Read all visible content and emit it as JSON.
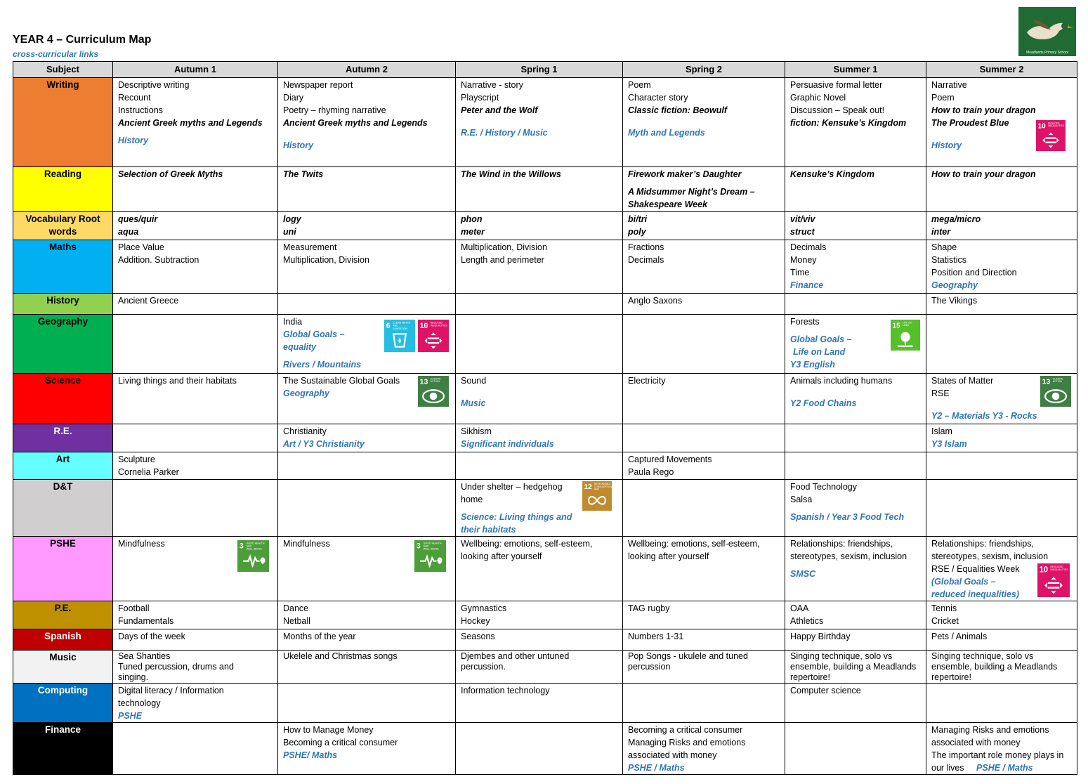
{
  "header": {
    "title": "YEAR 4 – Curriculum Map",
    "subtitle": "cross-curricular links",
    "logo_text": "Meadlands Primary School"
  },
  "columns": [
    "Subject",
    "Autumn 1",
    "Autumn 2",
    "Spring 1",
    "Spring 2",
    "Summer 1",
    "Summer 2"
  ],
  "colors": {
    "Writing": "#ed7d31",
    "Reading": "#ffff00",
    "Vocabulary": "#ffd966",
    "Maths": "#00b0f0",
    "History": "#92d050",
    "Geography": "#00b050",
    "Science": "#ff0000",
    "RE": "#7030a0",
    "Art": "#66ffff",
    "DT": "#d0cece",
    "PSHE": "#ff99ff",
    "PE": "#bf9000",
    "Spanish": "#c00000",
    "Music": "#f2f2f2",
    "Computing": "#0070c0",
    "Finance": "#000000",
    "link": "#2e75b6"
  },
  "sdg_icons": {
    "goal3": {
      "num": "3",
      "text": "GOOD HEALTH AND WELL-BEING",
      "color": "#4c9f38"
    },
    "goal6": {
      "num": "6",
      "text": "CLEAN WATER AND SANITATION",
      "color": "#26bde2"
    },
    "goal10": {
      "num": "10",
      "text": "REDUCED INEQUALITIES",
      "color": "#dd1367"
    },
    "goal12": {
      "num": "12",
      "text": "RESPONSIBLE CONSUMPTION AND PRODUCTION",
      "color": "#bf8b2e"
    },
    "goal13": {
      "num": "13",
      "text": "CLIMATE ACTION",
      "color": "#3f7e44"
    },
    "goal15": {
      "num": "15",
      "text": "LIFE ON LAND",
      "color": "#56c02b"
    }
  },
  "rows": {
    "writing": {
      "subject": "Writing",
      "a1": [
        "Descriptive writing",
        "Recount",
        "Instructions",
        "Ancient Greek myths and Legends",
        "History"
      ],
      "a2": [
        "Newspaper report",
        "Diary",
        "Poetry – rhyming narrative",
        "Ancient Greek myths and Legends",
        "History"
      ],
      "s1": [
        "Narrative - story",
        "Playscript",
        "Peter and the Wolf",
        "R.E. / History  / Music"
      ],
      "s2": [
        "Poem",
        "Character story",
        "Classic fiction: Beowulf",
        "Myth and Legends"
      ],
      "u1": [
        "Persuasive formal letter",
        "Graphic Novel",
        "Discussion – Speak out!",
        "fiction: Kensuke’s Kingdom"
      ],
      "u2": [
        "Narrative",
        "Poem",
        "How to train your dragon",
        "The Proudest Blue",
        "History"
      ]
    },
    "reading": {
      "subject": "Reading",
      "a1": [
        "Selection of Greek Myths"
      ],
      "a2": [
        "The Twits"
      ],
      "s1": [
        "The Wind in the Willows"
      ],
      "s2": [
        "Firework maker’s Daughter",
        "A Midsummer Night’s Dream – Shakespeare Week"
      ],
      "u1": [
        "Kensuke’s Kingdom"
      ],
      "u2": [
        "How to train your dragon"
      ]
    },
    "vocab": {
      "subject": "Vocabulary Root words",
      "a1": [
        "ques/quir",
        "aqua"
      ],
      "a2": [
        "logy",
        "uni"
      ],
      "s1": [
        "phon",
        "meter"
      ],
      "s2": [
        "bi/tri",
        "poly"
      ],
      "u1": [
        "vit/viv",
        "struct"
      ],
      "u2": [
        "mega/micro",
        "inter"
      ]
    },
    "maths": {
      "subject": "Maths",
      "a1": [
        "Place Value",
        "Addition. Subtraction"
      ],
      "a2": [
        "Measurement",
        "Multiplication, Division"
      ],
      "s1": [
        "Multiplication, Division",
        "Length and perimeter"
      ],
      "s2": [
        "Fractions",
        "Decimals"
      ],
      "u1": [
        "Decimals",
        "Money",
        "Time",
        "Finance"
      ],
      "u2": [
        "Shape",
        "Statistics",
        "Position and Direction",
        "Geography"
      ]
    },
    "history": {
      "subject": "History",
      "a1": [
        "Ancient Greece"
      ],
      "s2": [
        "Anglo Saxons"
      ],
      "u2": [
        "The Vikings"
      ]
    },
    "geography": {
      "subject": "Geography",
      "a2": [
        "India",
        "Global Goals –",
        "equality",
        "Rivers / Mountains"
      ],
      "u1": [
        "Forests",
        "Global Goals –",
        "Life on Land",
        "Y3 English"
      ]
    },
    "science": {
      "subject": "Science",
      "a1": [
        "Living things and their habitats"
      ],
      "a2": [
        "The Sustainable Global Goals",
        "Geography"
      ],
      "s1": [
        "Sound",
        "Music"
      ],
      "s2": [
        "Electricity"
      ],
      "u1": [
        "Animals including humans",
        "Y2 Food Chains"
      ],
      "u2": [
        "States of Matter",
        "RSE",
        "Y2 – Materials Y3 - Rocks"
      ]
    },
    "re": {
      "subject": "R.E.",
      "a2": [
        "Christianity",
        "Art / Y3 Christianity"
      ],
      "s1": [
        "Sikhism",
        "Significant individuals"
      ],
      "u2": [
        "Islam",
        "Y3 Islam"
      ]
    },
    "art": {
      "subject": "Art",
      "a1": [
        "Sculpture",
        "Cornelia Parker"
      ],
      "s2": [
        "Captured Movements",
        "Paula Rego"
      ]
    },
    "dt": {
      "subject": "D&T",
      "s1": [
        "Under shelter – hedgehog home",
        "Science:  Living things and their habitats"
      ],
      "u1": [
        "Food Technology",
        "Salsa",
        "Spanish / Year 3 Food Tech"
      ]
    },
    "pshe": {
      "subject": "PSHE",
      "a1": [
        "Mindfulness"
      ],
      "a2": [
        "Mindfulness"
      ],
      "s1": [
        "Wellbeing: emotions, self-esteem, looking after yourself"
      ],
      "s2": [
        "Wellbeing: emotions, self-esteem, looking after yourself"
      ],
      "u1": [
        "Relationships: friendships, stereotypes, sexism, inclusion",
        "SMSC"
      ],
      "u2": [
        "Relationships: friendships, stereotypes, sexism, inclusion",
        "RSE / Equalities Week",
        "(Global Goals –",
        "reduced inequalities)"
      ]
    },
    "pe": {
      "subject": "P.E.",
      "a1": [
        "Football",
        "Fundamentals"
      ],
      "a2": [
        "Dance",
        "Netball"
      ],
      "s1": [
        "Gymnastics",
        "Hockey"
      ],
      "s2": [
        "TAG rugby"
      ],
      "u1": [
        "OAA",
        "Athletics"
      ],
      "u2": [
        "Tennis",
        "Cricket"
      ]
    },
    "spanish": {
      "subject": "Spanish",
      "a1": [
        "Days of the week"
      ],
      "a2": [
        "Months of the year"
      ],
      "s1": [
        "Seasons"
      ],
      "s2": [
        "Numbers 1-31"
      ],
      "u1": [
        "Happy Birthday"
      ],
      "u2": [
        "Pets / Animals"
      ]
    },
    "music": {
      "subject": "Music",
      "a1": [
        "Sea Shanties",
        "Tuned percussion, drums and singing."
      ],
      "a2": [
        "Ukelele and Christmas songs"
      ],
      "s1": [
        "Djembes and other untuned percussion."
      ],
      "s2": [
        "Pop Songs - ukulele and tuned percussion"
      ],
      "u1": [
        "Singing technique, solo vs ensemble, building a Meadlands repertoire!"
      ],
      "u2": [
        "Singing technique, solo vs ensemble, building a Meadlands repertoire!"
      ]
    },
    "computing": {
      "subject": "Computing",
      "a1": [
        "Digital literacy / Information technology",
        "PSHE"
      ],
      "s1": [
        "Information technology"
      ],
      "u1": [
        "Computer science"
      ]
    },
    "finance": {
      "subject": "Finance",
      "a2": [
        "How to Manage Money",
        "Becoming a critical consumer",
        "PSHE/ Maths"
      ],
      "s2": [
        "Becoming a critical consumer",
        "Managing Risks and emotions associated with money",
        "PSHE / Maths"
      ],
      "u2": [
        "Managing Risks and emotions associated with money",
        "The important role money plays in our lives",
        "PSHE / Maths"
      ]
    }
  }
}
